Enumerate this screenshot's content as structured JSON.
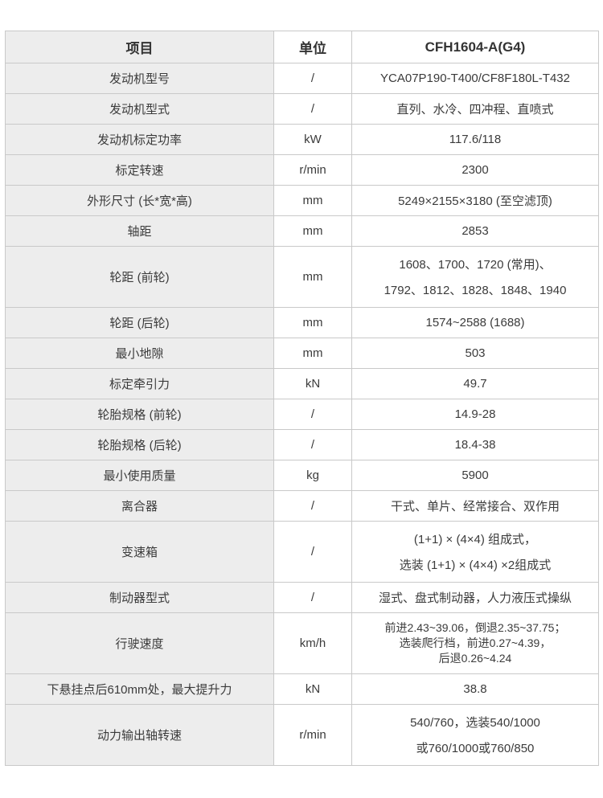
{
  "colors": {
    "item_column_bg": "#ededed",
    "cell_bg": "#ffffff",
    "border": "#c9c9c9",
    "text": "#3b3b3b"
  },
  "table": {
    "header": {
      "item": "项目",
      "unit": "单位",
      "model": "CFH1604-A(G4)"
    },
    "rows": [
      {
        "item": "发动机型号",
        "unit": "/",
        "value": [
          "YCA07P190-T400/CF8F180L-T432"
        ]
      },
      {
        "item": "发动机型式",
        "unit": "/",
        "value": [
          "直列、水冷、四冲程、直喷式"
        ]
      },
      {
        "item": "发动机标定功率",
        "unit": "kW",
        "value": [
          "117.6/118"
        ]
      },
      {
        "item": "标定转速",
        "unit": "r/min",
        "value": [
          "2300"
        ]
      },
      {
        "item": "外形尺寸 (长*宽*高)",
        "unit": "mm",
        "value": [
          "5249×2155×3180 (至空滤顶)"
        ]
      },
      {
        "item": "轴距",
        "unit": "mm",
        "value": [
          "2853"
        ]
      },
      {
        "item": "轮距 (前轮)",
        "unit": "mm",
        "value": [
          "1608、1700、1720 (常用)、",
          "1792、1812、1828、1848、1940"
        ]
      },
      {
        "item": "轮距 (后轮)",
        "unit": "mm",
        "value": [
          "1574~2588 (1688)"
        ]
      },
      {
        "item": "最小地隙",
        "unit": "mm",
        "value": [
          "503"
        ]
      },
      {
        "item": "标定牵引力",
        "unit": "kN",
        "value": [
          "49.7"
        ]
      },
      {
        "item": "轮胎规格 (前轮)",
        "unit": "/",
        "value": [
          "14.9-28"
        ]
      },
      {
        "item": "轮胎规格 (后轮)",
        "unit": "/",
        "value": [
          "18.4-38"
        ]
      },
      {
        "item": "最小使用质量",
        "unit": "kg",
        "value": [
          "5900"
        ]
      },
      {
        "item": "离合器",
        "unit": "/",
        "value": [
          "干式、单片、经常接合、双作用"
        ]
      },
      {
        "item": "变速箱",
        "unit": "/",
        "value": [
          "(1+1) × (4×4) 组成式，",
          "选装 (1+1) × (4×4) ×2组成式"
        ]
      },
      {
        "item": "制动器型式",
        "unit": "/",
        "value": [
          "湿式、盘式制动器，人力液压式操纵"
        ]
      },
      {
        "item": "行驶速度",
        "unit": "km/h",
        "value": [
          "前进2.43~39.06，倒退2.35~37.75；",
          "选装爬行档，前进0.27~4.39，",
          "后退0.26~4.24"
        ]
      },
      {
        "item": "下悬挂点后610mm处，最大提升力",
        "unit": "kN",
        "value": [
          "38.8"
        ]
      },
      {
        "item": "动力输出轴转速",
        "unit": "r/min",
        "value": [
          "540/760，选装540/1000",
          "或760/1000或760/850"
        ]
      }
    ]
  }
}
